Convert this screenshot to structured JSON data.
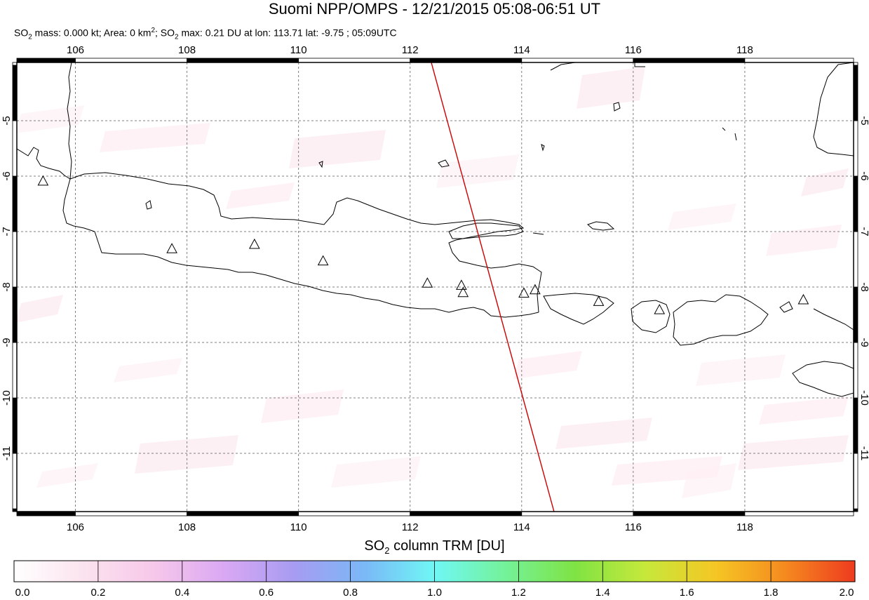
{
  "title": "Suomi NPP/OMPS - 12/21/2015 05:08-06:51 UT",
  "subtitle": {
    "mass_prefix": "SO",
    "mass_sub": "2",
    "mass_text": " mass: 0.000 kt; Area: 0 km",
    "area_sup": "2",
    "max_prefix": "; SO",
    "max_sub": "2",
    "max_text": " max: 0.21 DU at lon: 113.71 lat: -9.75 ; 05:09UTC"
  },
  "map": {
    "lon_range": [
      104.95,
      119.95
    ],
    "lat_range": [
      -12.05,
      -3.95
    ],
    "lon_ticks": [
      "106",
      "108",
      "110",
      "112",
      "114",
      "116",
      "118"
    ],
    "lon_tick_values": [
      106,
      108,
      110,
      112,
      114,
      116,
      118
    ],
    "lat_ticks": [
      "-5",
      "-6",
      "-7",
      "-8",
      "-9",
      "-10",
      "-11"
    ],
    "lat_tick_values": [
      -5,
      -6,
      -7,
      -8,
      -9,
      -10,
      -11
    ],
    "grid": "dashed",
    "coastline_color": "#000000",
    "track_color": "#cc0000",
    "orbit_track": [
      [
        112.38,
        -3.95
      ],
      [
        114.58,
        -12.05
      ]
    ],
    "volcanoes": [
      [
        105.42,
        -6.1
      ],
      [
        107.73,
        -7.32
      ],
      [
        109.21,
        -7.24
      ],
      [
        110.44,
        -7.54
      ],
      [
        112.31,
        -7.94
      ],
      [
        112.92,
        -7.98
      ],
      [
        112.95,
        -8.11
      ],
      [
        114.04,
        -8.12
      ],
      [
        114.24,
        -8.06
      ],
      [
        115.38,
        -8.27
      ],
      [
        116.47,
        -8.42
      ],
      [
        119.05,
        -8.24
      ]
    ],
    "so2_pixel_color": "#fdeef4"
  },
  "colorbar": {
    "title_prefix": "SO",
    "title_sub": "2",
    "title_text": " column TRM [DU]",
    "labels": [
      "0.0",
      "0.2",
      "0.4",
      "0.6",
      "0.8",
      "1.0",
      "1.2",
      "1.4",
      "1.6",
      "1.8",
      "2.0"
    ],
    "range": [
      0.0,
      2.0
    ],
    "colors": [
      "#ffffff",
      "#fbe3ee",
      "#f7c7ea",
      "#d9a8f3",
      "#a79cf1",
      "#7ab8f6",
      "#6ff7f5",
      "#74f29a",
      "#7fe344",
      "#c6e83b",
      "#f5c724",
      "#f58a1f",
      "#ee3b1f"
    ]
  }
}
